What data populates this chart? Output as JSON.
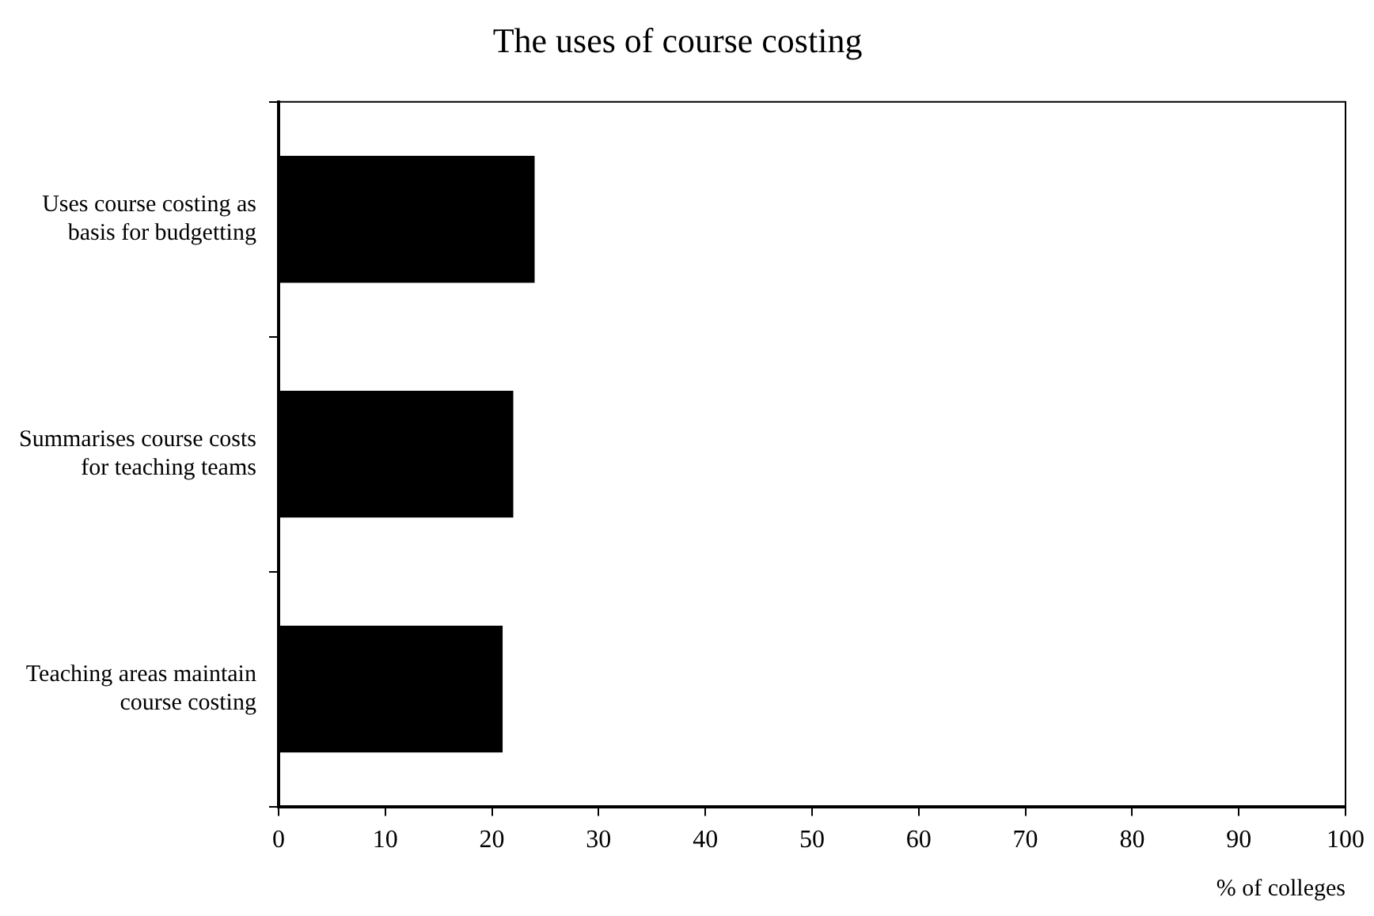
{
  "chart_data": {
    "type": "bar",
    "orientation": "horizontal",
    "title": "The uses of course costing",
    "xlabel": "% of colleges",
    "categories": [
      "Uses course costing as basis for budgetting",
      "Summarises course costs for teaching teams",
      "Teaching areas maintain course costing"
    ],
    "values": [
      24,
      22,
      21
    ],
    "color": "#000000",
    "xlim": [
      0,
      100
    ],
    "xticks": [
      0,
      10,
      20,
      30,
      40,
      50,
      60,
      70,
      80,
      90,
      100
    ],
    "grid": false,
    "legend": false
  }
}
